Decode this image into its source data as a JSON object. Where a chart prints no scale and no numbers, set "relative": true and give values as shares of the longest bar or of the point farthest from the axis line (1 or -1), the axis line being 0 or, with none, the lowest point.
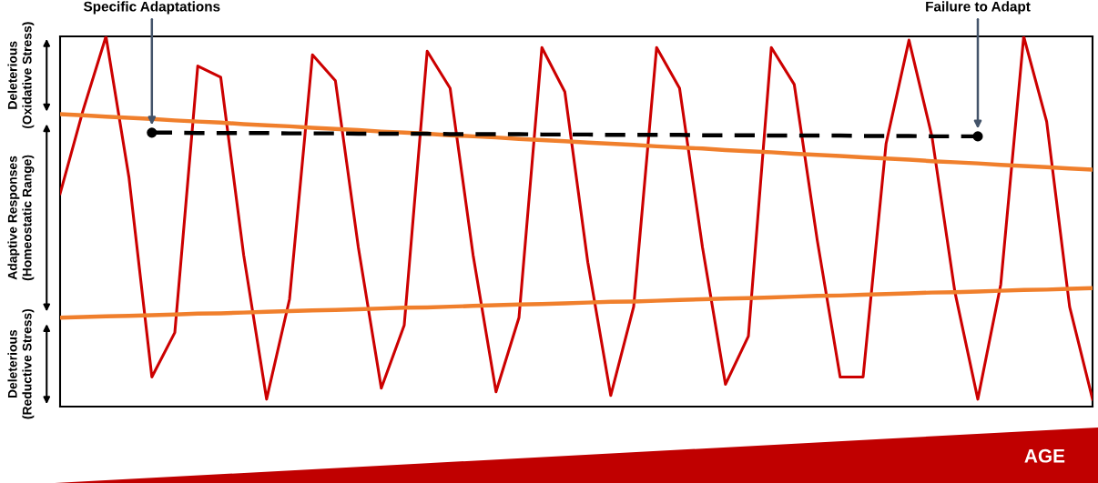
{
  "chart_data": {
    "type": "line",
    "relative": true,
    "categories": [
      null,
      null,
      null,
      null,
      null,
      null,
      null,
      null,
      null,
      null,
      null,
      null,
      null,
      null,
      null,
      null,
      null,
      null,
      null,
      null,
      null,
      null,
      null,
      null,
      null,
      null,
      null,
      null,
      null,
      null,
      null,
      null,
      null,
      null,
      null,
      null,
      null,
      null,
      null,
      null,
      null,
      null,
      null,
      null,
      null,
      null
    ],
    "series": [
      {
        "color": "#cc0000",
        "values": [
          0.575,
          0.8,
          1.0,
          0.62,
          0.08,
          0.2,
          0.92,
          0.89,
          0.41,
          0.02,
          0.29,
          0.95,
          0.88,
          0.43,
          0.05,
          0.22,
          0.96,
          0.86,
          0.41,
          0.04,
          0.24,
          0.97,
          0.85,
          0.39,
          0.03,
          0.27,
          0.97,
          0.86,
          0.43,
          0.06,
          0.19,
          0.97,
          0.87,
          0.45,
          0.08,
          0.08,
          0.71,
          0.99,
          0.73,
          0.31,
          0.02,
          0.33,
          1.0,
          0.77,
          0.27,
          0.02
        ]
      },
      {
        "color": "#f07f2c",
        "values": [
          0.79,
          0.787,
          0.783,
          0.78,
          0.777,
          0.773,
          0.77,
          0.767,
          0.763,
          0.76,
          0.757,
          0.753,
          0.75,
          0.747,
          0.743,
          0.74,
          0.737,
          0.733,
          0.73,
          0.727,
          0.723,
          0.72,
          0.717,
          0.713,
          0.71,
          0.707,
          0.703,
          0.7,
          0.697,
          0.693,
          0.69,
          0.687,
          0.683,
          0.68,
          0.677,
          0.673,
          0.67,
          0.667,
          0.663,
          0.66,
          0.657,
          0.653,
          0.65,
          0.647,
          0.643,
          0.64
        ]
      },
      {
        "color": "#f07f2c",
        "values": [
          0.24,
          0.242,
          0.244,
          0.245,
          0.247,
          0.249,
          0.251,
          0.252,
          0.254,
          0.256,
          0.258,
          0.26,
          0.261,
          0.263,
          0.265,
          0.267,
          0.268,
          0.27,
          0.272,
          0.274,
          0.276,
          0.277,
          0.279,
          0.281,
          0.283,
          0.284,
          0.286,
          0.288,
          0.29,
          0.292,
          0.293,
          0.295,
          0.297,
          0.299,
          0.3,
          0.302,
          0.304,
          0.306,
          0.308,
          0.309,
          0.311,
          0.313,
          0.315,
          0.316,
          0.318,
          0.32
        ]
      },
      {
        "color": "#000000",
        "line_style": "dashed",
        "values": [
          null,
          null,
          null,
          null,
          0.74,
          0.74,
          0.739,
          0.739,
          0.739,
          0.739,
          0.738,
          0.738,
          0.738,
          0.737,
          0.737,
          0.737,
          0.737,
          0.736,
          0.736,
          0.736,
          0.736,
          0.735,
          0.735,
          0.735,
          0.734,
          0.734,
          0.734,
          0.734,
          0.733,
          0.733,
          0.733,
          0.732,
          0.732,
          0.732,
          0.732,
          0.731,
          0.731,
          0.731,
          0.73,
          0.73,
          0.73,
          null,
          null,
          null,
          null,
          null
        ]
      }
    ],
    "annotations": [
      "Specific Adaptations",
      "Failure to Adapt",
      "Deleterious\n(Oxidative Stress)",
      "Adaptive Responses\n(Homeostatic Range)",
      "Deleterious\n(Reductive Stress)",
      "AGE"
    ]
  }
}
